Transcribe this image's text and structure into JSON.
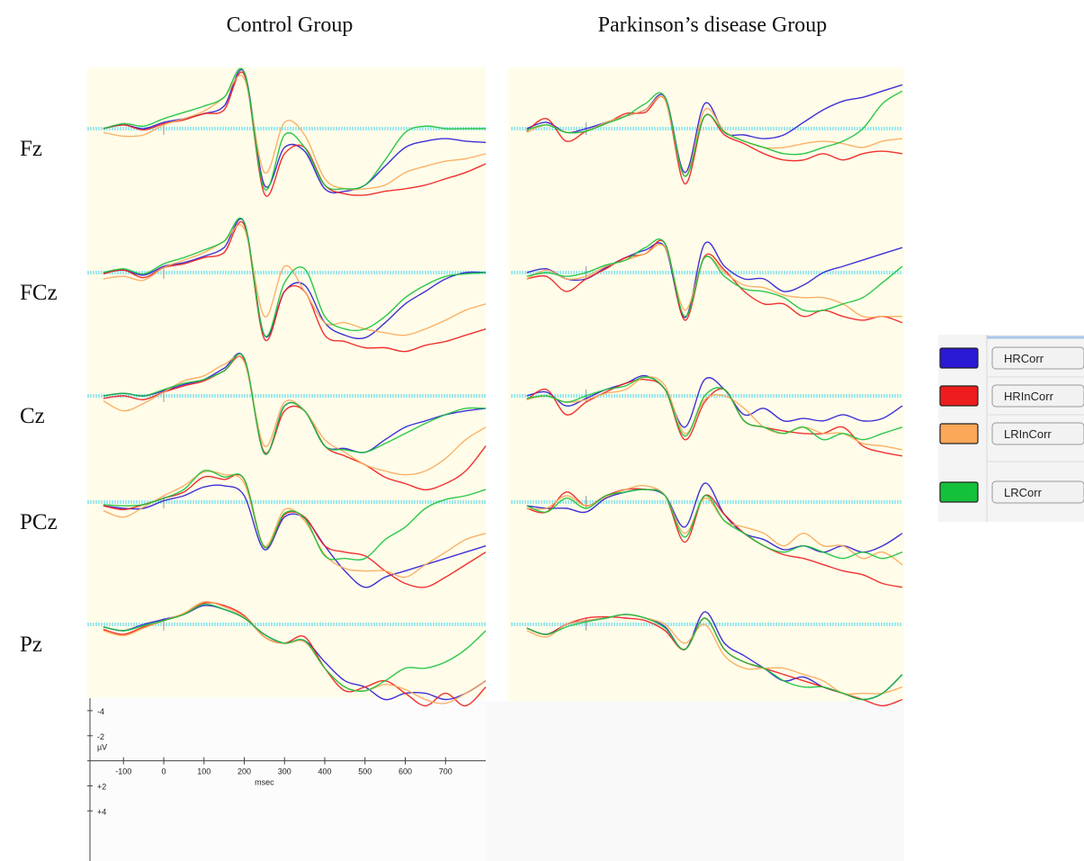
{
  "chart_data": {
    "type": "line",
    "negative_up": true,
    "x": [
      -150,
      -100,
      -50,
      0,
      50,
      100,
      150,
      200,
      250,
      300,
      350,
      400,
      450,
      500,
      550,
      600,
      650,
      700,
      750,
      800
    ],
    "xlim": [
      -190,
      800
    ],
    "ylim": [
      -5,
      8
    ],
    "xticks": [
      -100,
      0,
      100,
      200,
      300,
      400,
      500,
      600,
      700
    ],
    "yticks": [
      -4,
      -2,
      {
        "value": 2,
        "label": "+2"
      },
      {
        "value": 4,
        "label": "+4"
      }
    ],
    "xlabel": "msec",
    "ylabel": "µV",
    "electrodes": [
      "Fz",
      "FCz",
      "Cz",
      "PCz",
      "Pz"
    ],
    "legend": [
      {
        "name": "HRCorr",
        "color": "#2a1ad6"
      },
      {
        "name": "HRInCorr",
        "color": "#ee1c1c"
      },
      {
        "name": "LRInCorr",
        "color": "#fba85a"
      },
      {
        "name": "LRCorr",
        "color": "#16c13a"
      }
    ],
    "groups": [
      {
        "title": "Control Group",
        "panels": [
          [
            [
              0,
              -0.3,
              0,
              -0.5,
              -0.8,
              -1.2,
              -1.8,
              -4.5,
              4.5,
              1.5,
              1.8,
              4.8,
              5,
              4.5,
              3,
              1.5,
              1,
              0.8,
              1,
              1.1
            ],
            [
              0,
              -0.3,
              0.1,
              -0.4,
              -0.7,
              -1.2,
              -1.5,
              -4.3,
              5.2,
              2,
              1.5,
              4.5,
              5.2,
              5.3,
              5,
              4.8,
              4.5,
              4,
              3.5,
              2.8
            ],
            [
              0.3,
              0.6,
              0.5,
              -0.3,
              -0.8,
              -1.4,
              -2.5,
              -4,
              3.5,
              -0.5,
              0.5,
              4,
              4.8,
              4.8,
              4.5,
              3.5,
              3,
              2.6,
              2.4,
              2
            ],
            [
              0,
              -0.4,
              -0.2,
              -0.8,
              -1.3,
              -1.8,
              -2.5,
              -4.5,
              4.8,
              0.5,
              1.5,
              4.5,
              4.8,
              4.5,
              2.5,
              0.3,
              -0.2,
              0,
              0,
              0
            ]
          ],
          [
            [
              0,
              -0.2,
              0.2,
              -0.5,
              -0.8,
              -1.3,
              -2,
              -4,
              5,
              1.5,
              1,
              4,
              5,
              5.2,
              4,
              2.5,
              1.5,
              0.5,
              0,
              0
            ],
            [
              0.1,
              -0.2,
              0.4,
              -0.4,
              -0.7,
              -1.2,
              -1.6,
              -3.8,
              5.3,
              1.5,
              1.5,
              5,
              5.5,
              6,
              6,
              6.3,
              5.8,
              5.5,
              5,
              4.5
            ],
            [
              0.5,
              0.3,
              0.6,
              -0.4,
              -1,
              -1.6,
              -2.5,
              -3.5,
              3.5,
              -0.5,
              1.5,
              4,
              4,
              4.5,
              4.8,
              5,
              4.5,
              3.8,
              3,
              2.5
            ],
            [
              0,
              -0.3,
              0.1,
              -0.7,
              -1.2,
              -1.8,
              -2.5,
              -4,
              5,
              0.8,
              -0.3,
              3.5,
              4.5,
              4.5,
              3.5,
              2,
              1,
              0.3,
              0.1,
              0
            ]
          ],
          [
            [
              0,
              -0.2,
              0,
              -0.4,
              -0.9,
              -1.3,
              -2.2,
              -3,
              4.6,
              0.8,
              1.2,
              4,
              4.2,
              4.5,
              3.5,
              2.5,
              2,
              1.5,
              1.2,
              1
            ],
            [
              0.2,
              0,
              0.3,
              -0.3,
              -0.8,
              -1.2,
              -2,
              -2.8,
              4.5,
              1.2,
              1.2,
              4,
              4.8,
              5.5,
              6.5,
              7,
              7.5,
              7,
              6,
              4
            ],
            [
              0.4,
              1.2,
              0.6,
              -0.3,
              -1.2,
              -1.6,
              -2.5,
              -2.7,
              4,
              0.5,
              1.2,
              3.5,
              4.5,
              5.5,
              6,
              6.3,
              6,
              5,
              3.5,
              2.5
            ],
            [
              0,
              -0.2,
              0,
              -0.5,
              -1,
              -1.3,
              -2,
              -3,
              4.6,
              0.8,
              1.2,
              4,
              4.3,
              4.5,
              3.8,
              3,
              2.2,
              1.5,
              1,
              1
            ]
          ],
          [
            [
              0.3,
              0.5,
              0.5,
              -0.1,
              -0.5,
              -1.2,
              -1.3,
              -0.5,
              3.8,
              1.2,
              1.3,
              3.5,
              5.5,
              6.8,
              6,
              5.5,
              5,
              4.5,
              4,
              3.5
            ],
            [
              0.3,
              0.6,
              0.2,
              -0.3,
              -0.8,
              -2,
              -1.8,
              -1.8,
              3.6,
              1,
              1.2,
              3.5,
              4,
              4.3,
              5.5,
              6.5,
              6.8,
              6,
              5,
              4
            ],
            [
              0.7,
              1.2,
              0.4,
              -0.5,
              -1.3,
              -2.4,
              -2.2,
              -1.5,
              3.5,
              0.6,
              1.5,
              4.2,
              5.3,
              5.5,
              5.5,
              6,
              5,
              4,
              3,
              2.5
            ],
            [
              0.2,
              0.3,
              0.2,
              -0.3,
              -1,
              -2.5,
              -2,
              -1.8,
              3.6,
              0.9,
              1.3,
              4.3,
              4.5,
              4.5,
              3,
              2,
              0.5,
              -0.2,
              -0.5,
              -1
            ]
          ],
          [
            [
              0.2,
              0.5,
              0,
              -0.4,
              -0.8,
              -1.5,
              -1.2,
              -0.5,
              0.8,
              1.5,
              1.3,
              3,
              4.5,
              5,
              6,
              5.5,
              5.5,
              6,
              5.5,
              4.5
            ],
            [
              0.4,
              0.8,
              0.2,
              -0.3,
              -0.8,
              -1.7,
              -1.5,
              -0.7,
              1,
              1.5,
              1,
              3.5,
              5.3,
              5,
              4.5,
              5.5,
              6.5,
              5.5,
              6.5,
              5
            ],
            [
              0.5,
              0.9,
              0.3,
              -0.3,
              -0.9,
              -1.8,
              -1.4,
              -0.6,
              1,
              1.5,
              1.4,
              3.5,
              5,
              5.3,
              4.8,
              5.2,
              6,
              6.3,
              5.5,
              4.5
            ],
            [
              0.2,
              0.5,
              0.1,
              -0.3,
              -0.8,
              -1.6,
              -1.2,
              -0.5,
              0.8,
              1.5,
              1.3,
              3.5,
              5,
              5.3,
              4.5,
              3.5,
              3.5,
              3,
              2,
              0.5
            ]
          ]
        ]
      },
      {
        "title": "Parkinson’s disease Group",
        "panels": [
          [
            [
              0,
              -0.5,
              0.3,
              0,
              -0.5,
              -1,
              -1.5,
              -2.5,
              3.5,
              -2,
              0.3,
              0.5,
              0.8,
              0.5,
              -0.5,
              -1.5,
              -2.2,
              -2.5,
              -3,
              -3.5
            ],
            [
              0.2,
              -0.8,
              1,
              0.2,
              -0.4,
              -1.2,
              -1.3,
              -2.3,
              4.4,
              -1,
              0.5,
              1.2,
              2,
              2.5,
              2.5,
              2,
              2.5,
              2,
              1.8,
              2
            ],
            [
              0.3,
              -0.3,
              0.3,
              0.2,
              -0.5,
              -1,
              -1.5,
              -2.3,
              3.8,
              -1.5,
              0.2,
              1,
              1.5,
              1.5,
              1.2,
              1,
              1.2,
              1.5,
              1,
              0.8
            ],
            [
              0.1,
              -0.3,
              0.3,
              0.2,
              -0.4,
              -1,
              -2,
              -2.5,
              3.8,
              -1,
              0.3,
              1,
              1.5,
              2,
              2,
              1.5,
              1,
              0,
              -2,
              -3
            ]
          ],
          [
            [
              0,
              -0.3,
              0.5,
              0.5,
              -0.4,
              -1.2,
              -1.8,
              -2,
              3.6,
              -2.3,
              -0.5,
              0.5,
              0.5,
              1.5,
              1,
              0,
              -0.5,
              -1,
              -1.5,
              -2
            ],
            [
              0.5,
              0.3,
              1.5,
              0.5,
              -0.3,
              -1.2,
              -1.5,
              -2.3,
              3.8,
              -1.3,
              -0.2,
              1.5,
              2.5,
              2.5,
              3.5,
              3,
              3.5,
              3.8,
              3.5,
              4
            ],
            [
              0.5,
              -0.2,
              0.5,
              0.3,
              -0.5,
              -1,
              -1.5,
              -2,
              3,
              -1.2,
              0,
              1,
              1.2,
              1.8,
              2,
              2,
              2.5,
              3.5,
              3.5,
              3.5
            ],
            [
              0.3,
              0,
              0.3,
              0,
              -0.6,
              -1,
              -2,
              -2.3,
              3.5,
              -1.2,
              0.3,
              1.3,
              1.5,
              2,
              3,
              3,
              2.5,
              2,
              0.8,
              -0.5
            ]
          ],
          [
            [
              0,
              -0.3,
              0.8,
              0.2,
              -0.5,
              -1,
              -1.6,
              -0.5,
              2.5,
              -1.3,
              -0.5,
              1.5,
              1,
              2,
              1.8,
              2,
              1.5,
              2,
              1.8,
              0.8
            ],
            [
              0.3,
              -0.5,
              1.5,
              0.5,
              -0.3,
              -1,
              -1.3,
              -0.5,
              3.5,
              0.5,
              -0.5,
              2,
              2.5,
              2.8,
              3,
              3,
              2.5,
              4,
              4.5,
              4.8
            ],
            [
              0.3,
              0,
              0.5,
              0.3,
              -0.2,
              -0.5,
              -1.5,
              -0.8,
              3,
              0.3,
              0,
              1,
              2.5,
              3,
              2.5,
              3,
              3,
              3.8,
              4,
              4.3
            ],
            [
              0.2,
              0,
              0.5,
              0,
              -0.5,
              -0.8,
              -1.5,
              -0.5,
              3.2,
              0,
              -0.5,
              2,
              2.5,
              3,
              2.5,
              3.5,
              3,
              3.5,
              3,
              2.5
            ]
          ],
          [
            [
              0.3,
              0.5,
              0.5,
              0.8,
              -0.3,
              -0.8,
              -1,
              -0.5,
              2,
              -1.5,
              1,
              2.5,
              3,
              3.8,
              3.5,
              4,
              3.5,
              4,
              3.5,
              2.5
            ],
            [
              0.5,
              0.8,
              -0.8,
              0.3,
              -0.5,
              -1,
              -1,
              -0.5,
              3.2,
              -0.5,
              1,
              2.5,
              3.5,
              4.2,
              4.5,
              5,
              5.5,
              5.8,
              6.5,
              6.8
            ],
            [
              0.5,
              0.5,
              -0.5,
              0.3,
              -0.4,
              -1,
              -1.3,
              -0.5,
              2.5,
              -0.3,
              1.5,
              2,
              2.5,
              3.5,
              2.5,
              3.5,
              3.5,
              4.5,
              4,
              5
            ],
            [
              0.3,
              0.8,
              -0.3,
              0.5,
              -0.5,
              -0.8,
              -1,
              -0.5,
              2.8,
              -0.5,
              1.5,
              2.5,
              3.5,
              4,
              3.5,
              4,
              4.5,
              4,
              4.5,
              4
            ]
          ],
          [
            [
              0.3,
              0.8,
              0,
              -0.3,
              -0.5,
              -0.8,
              -0.5,
              0.2,
              2,
              -1,
              1.5,
              2.5,
              3.5,
              4.5,
              4.2,
              5,
              5.5,
              6,
              5.5,
              4
            ],
            [
              0.3,
              0.8,
              0,
              -0.5,
              -0.6,
              -0.5,
              -0.3,
              0.5,
              2,
              -0.5,
              2,
              3,
              3.5,
              4,
              4.5,
              5,
              5.5,
              6,
              6.5,
              6
            ],
            [
              0.5,
              1,
              0,
              -0.3,
              -0.5,
              -0.8,
              -0.5,
              0,
              1.5,
              0,
              2.5,
              3.5,
              3.5,
              3.5,
              4,
              4.5,
              5.5,
              5.5,
              5.5,
              5
            ],
            [
              0.3,
              0.8,
              0.2,
              -0.2,
              -0.5,
              -0.8,
              -0.5,
              0.3,
              2,
              -0.5,
              2,
              3,
              3.5,
              4.5,
              5,
              5,
              5.5,
              6,
              5.5,
              4
            ]
          ]
        ]
      }
    ]
  }
}
